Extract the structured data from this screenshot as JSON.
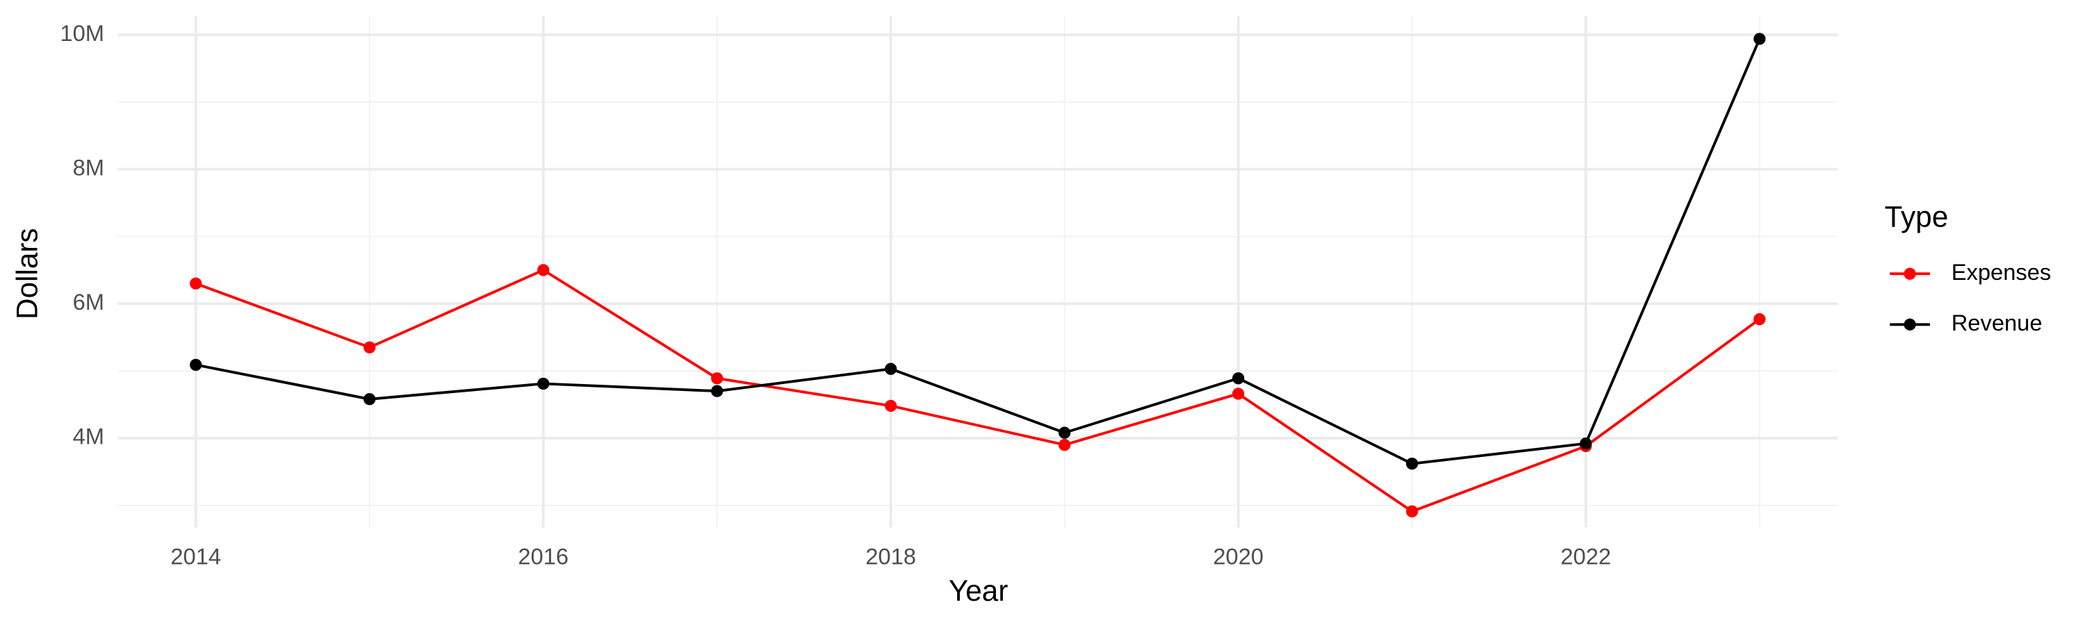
{
  "chart_data": {
    "type": "line",
    "x_label": "Year",
    "y_label": "Dollars",
    "legend_title": "Type",
    "legend_position": "right",
    "grid": true,
    "x": [
      2014,
      2015,
      2016,
      2017,
      2018,
      2019,
      2020,
      2021,
      2022,
      2023
    ],
    "series": [
      {
        "name": "Expenses",
        "color": "#ff0000",
        "values": [
          6300000,
          5350000,
          6500000,
          4890000,
          4480000,
          3900000,
          4660000,
          2910000,
          3880000,
          5770000
        ]
      },
      {
        "name": "Revenue",
        "color": "#000000",
        "values": [
          5090000,
          4580000,
          4810000,
          4700000,
          5030000,
          4080000,
          4890000,
          3620000,
          3920000,
          9940000
        ]
      }
    ],
    "xlim": [
      2013.55,
      2023.45
    ],
    "xticks": [
      2014,
      2016,
      2018,
      2020,
      2022
    ],
    "ylim": [
      2670000,
      10280000
    ],
    "yticks": [
      {
        "value": 4000000,
        "label": "4M"
      },
      {
        "value": 6000000,
        "label": "6M"
      },
      {
        "value": 8000000,
        "label": "8M"
      },
      {
        "value": 10000000,
        "label": "10M"
      }
    ]
  }
}
